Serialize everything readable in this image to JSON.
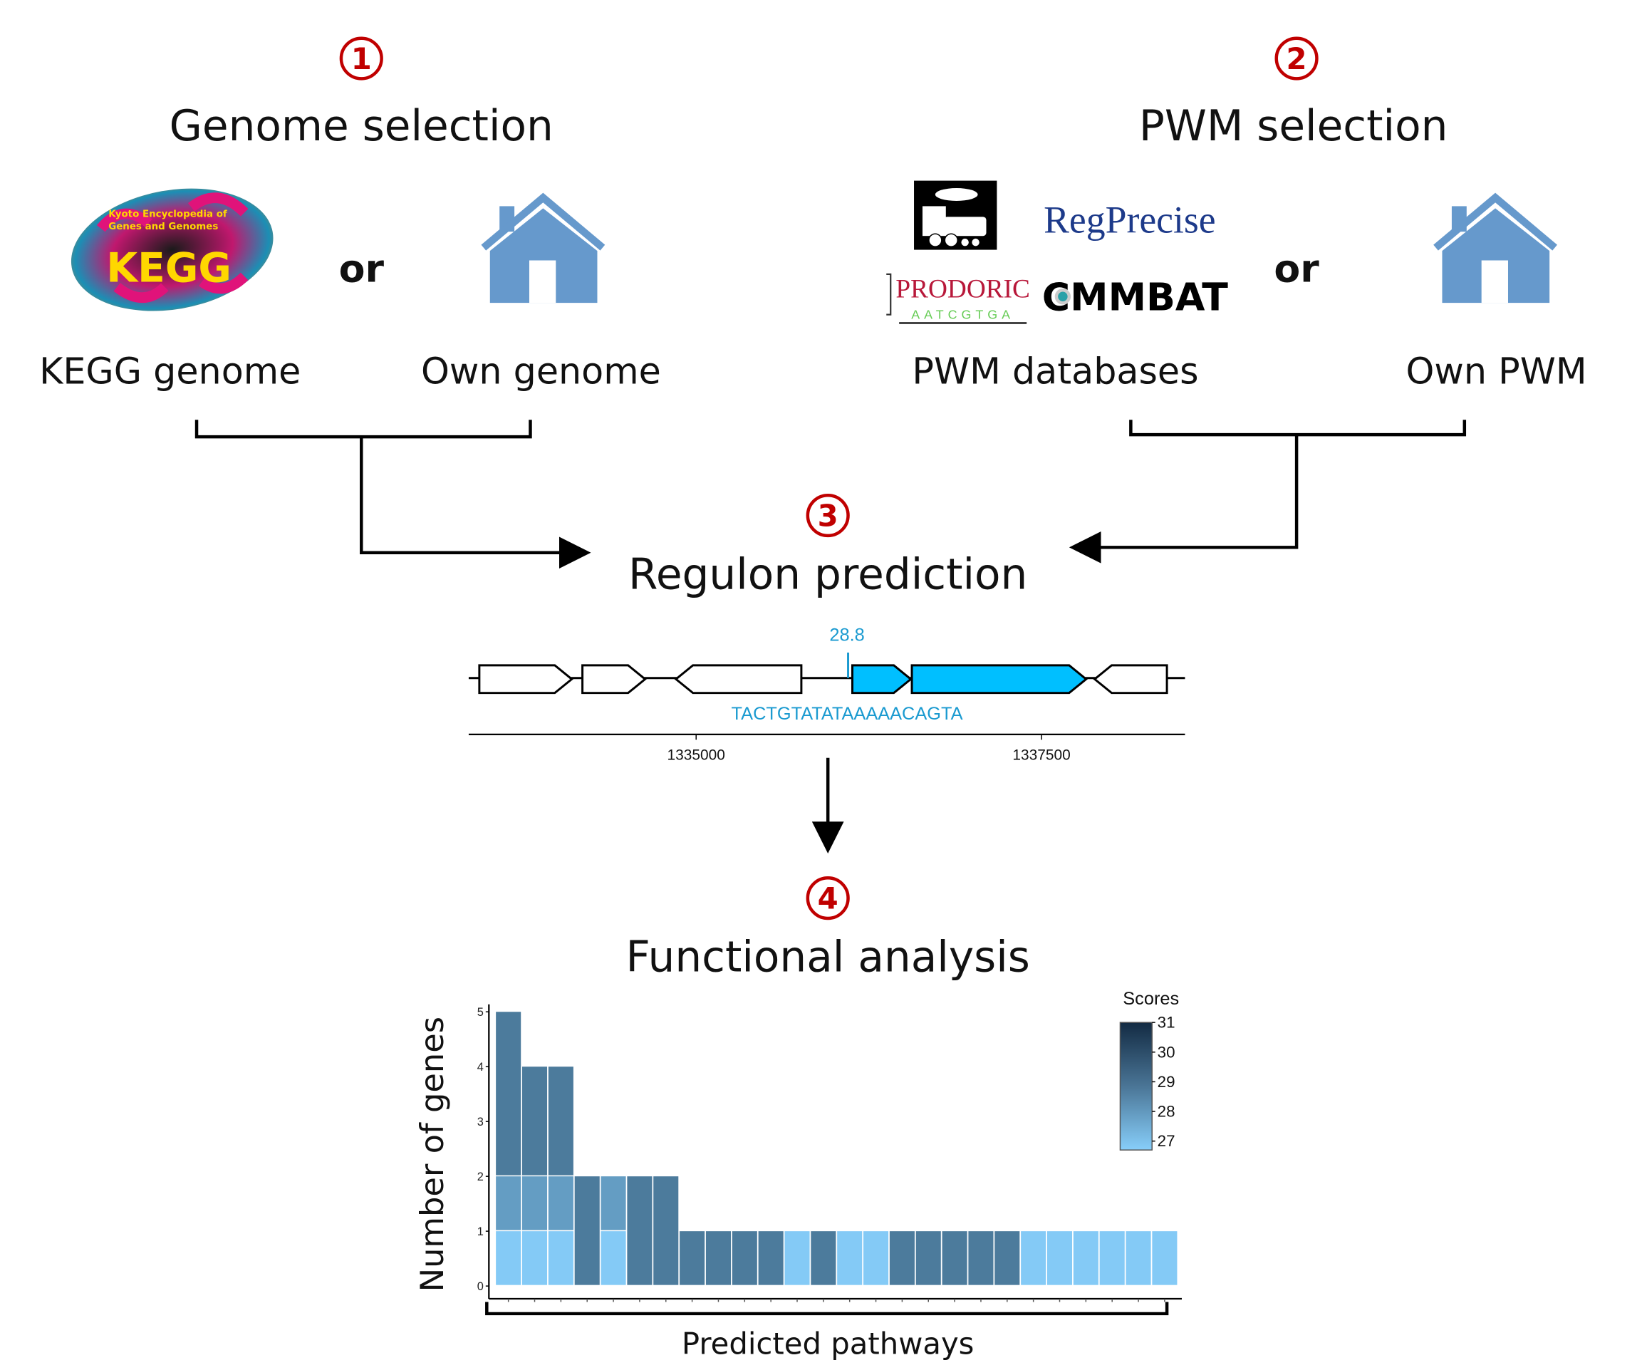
{
  "steps": [
    {
      "number": "1",
      "title": "Genome selection"
    },
    {
      "number": "2",
      "title": "PWM selection"
    },
    {
      "number": "3",
      "title": "Regulon prediction"
    },
    {
      "number": "4",
      "title": "Functional analysis"
    }
  ],
  "genome": {
    "option_a": "KEGG genome",
    "option_b": "Own genome",
    "or": "or"
  },
  "pwm": {
    "option_a": "PWM databases",
    "option_b": "Own PWM",
    "or": "or"
  },
  "logos": {
    "kegg": {
      "letters": "KEGG",
      "subtitle_1": "Kyoto Encyclopedia of",
      "subtitle_2": "Genes and Genomes"
    },
    "regprecise": "RegPrecise",
    "prodoric": {
      "name": "PRODORIC",
      "motif": "AATCGTGA"
    },
    "cmmbat": "CMMBAT"
  },
  "icons": [
    "house-icon",
    "house-icon",
    "train-logo-icon"
  ],
  "colors": {
    "step_number": "#c00000",
    "house": "#6699cc",
    "highlight_gene": "#00bfff",
    "site_text": "#1a9ad0"
  },
  "regulon_track": {
    "site_score": "28.8",
    "site_sequence": "TACTGTATATAAAAACAGTA",
    "axis_ticks": [
      "1335000",
      "1337500"
    ],
    "genes": [
      {
        "strand": "+",
        "highlighted": false
      },
      {
        "strand": "+",
        "highlighted": false
      },
      {
        "strand": "-",
        "highlighted": false
      },
      {
        "strand": "+",
        "highlighted": true
      },
      {
        "strand": "+",
        "highlighted": true
      },
      {
        "strand": "-",
        "highlighted": false
      }
    ]
  },
  "chart_data": {
    "type": "bar",
    "stacked": true,
    "xlabel": "Predicted pathways",
    "ylabel": "Number of genes",
    "ylim": [
      0,
      5
    ],
    "y_ticks": [
      "0",
      "1",
      "2",
      "3",
      "4",
      "5"
    ],
    "legend": {
      "title": "Scores",
      "ticks": [
        "31",
        "30",
        "29",
        "28",
        "27"
      ],
      "range": [
        26.7,
        31
      ],
      "low_color": "#87cefa",
      "high_color": "#132b43",
      "position": "top-right"
    },
    "bars": [
      [
        {
          "score": 26.8,
          "count": 1
        },
        {
          "score": 28,
          "count": 1
        },
        {
          "score": 28.9,
          "count": 3
        }
      ],
      [
        {
          "score": 26.8,
          "count": 1
        },
        {
          "score": 28,
          "count": 1
        },
        {
          "score": 28.9,
          "count": 2
        }
      ],
      [
        {
          "score": 26.8,
          "count": 1
        },
        {
          "score": 28,
          "count": 1
        },
        {
          "score": 28.9,
          "count": 2
        }
      ],
      [
        {
          "score": 28.9,
          "count": 2
        }
      ],
      [
        {
          "score": 26.8,
          "count": 1
        },
        {
          "score": 28,
          "count": 1
        }
      ],
      [
        {
          "score": 28.9,
          "count": 2
        }
      ],
      [
        {
          "score": 28.9,
          "count": 2
        }
      ],
      [
        {
          "score": 28.9,
          "count": 1
        }
      ],
      [
        {
          "score": 28.9,
          "count": 1
        }
      ],
      [
        {
          "score": 28.9,
          "count": 1
        }
      ],
      [
        {
          "score": 28.9,
          "count": 1
        }
      ],
      [
        {
          "score": 26.8,
          "count": 1
        }
      ],
      [
        {
          "score": 28.9,
          "count": 1
        }
      ],
      [
        {
          "score": 26.8,
          "count": 1
        }
      ],
      [
        {
          "score": 26.8,
          "count": 1
        }
      ],
      [
        {
          "score": 28.9,
          "count": 1
        }
      ],
      [
        {
          "score": 28.9,
          "count": 1
        }
      ],
      [
        {
          "score": 28.9,
          "count": 1
        }
      ],
      [
        {
          "score": 28.9,
          "count": 1
        }
      ],
      [
        {
          "score": 28.9,
          "count": 1
        }
      ],
      [
        {
          "score": 26.8,
          "count": 1
        }
      ],
      [
        {
          "score": 26.8,
          "count": 1
        }
      ],
      [
        {
          "score": 26.8,
          "count": 1
        }
      ],
      [
        {
          "score": 26.8,
          "count": 1
        }
      ],
      [
        {
          "score": 26.8,
          "count": 1
        }
      ],
      [
        {
          "score": 26.8,
          "count": 1
        }
      ]
    ]
  }
}
